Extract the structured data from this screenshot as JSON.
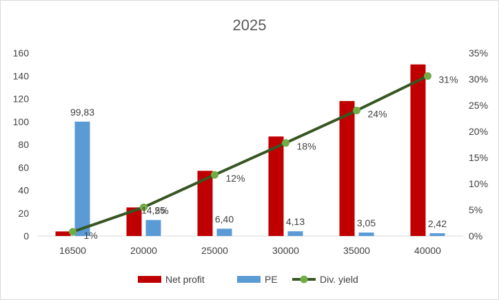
{
  "chart_data": {
    "type": "bar",
    "title": "2025",
    "categories": [
      "16500",
      "20000",
      "25000",
      "30000",
      "35000",
      "40000"
    ],
    "series": [
      {
        "name": "Net profit",
        "kind": "bar",
        "axis": "left",
        "color": "#c00000",
        "values": [
          4,
          25,
          57,
          87,
          118,
          150
        ]
      },
      {
        "name": "PE",
        "kind": "bar",
        "axis": "left",
        "color": "#5b9bd5",
        "values": [
          100,
          14,
          6.4,
          4.13,
          3.05,
          2.42
        ],
        "labels": [
          "99,83",
          "14,25",
          "6,40",
          "4,13",
          "3,05",
          "2,42"
        ]
      },
      {
        "name": "Div. yield",
        "kind": "line",
        "axis": "right",
        "color": "#375623",
        "marker_color": "#70ad47",
        "values": [
          0.008,
          0.055,
          0.117,
          0.178,
          0.24,
          0.306
        ],
        "labels": [
          "1%",
          "5%",
          "12%",
          "18%",
          "24%",
          "31%"
        ]
      }
    ],
    "y_left": {
      "min": 0,
      "max": 160,
      "ticks": [
        "0",
        "20",
        "40",
        "60",
        "80",
        "100",
        "120",
        "140",
        "160"
      ]
    },
    "y_right": {
      "min": 0,
      "max": 0.35,
      "ticks": [
        "0%",
        "5%",
        "10%",
        "15%",
        "20%",
        "25%",
        "30%",
        "35%"
      ]
    },
    "grid": false,
    "legend": "bottom"
  }
}
